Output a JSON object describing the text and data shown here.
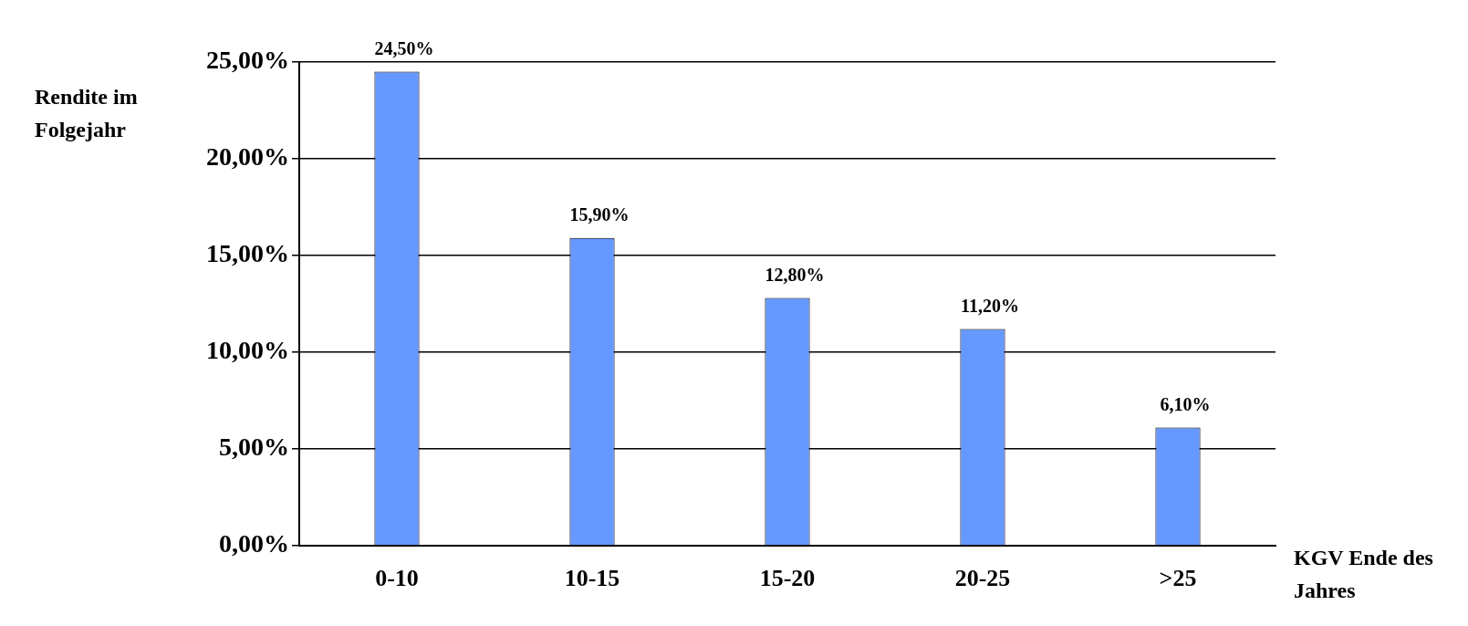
{
  "chart_data": {
    "type": "bar",
    "xlabel": "KGV Ende des Jahres",
    "ylabel": "Rendite im Folgejahr",
    "categories": [
      "0-10",
      "10-15",
      "15-20",
      "20-25",
      ">25"
    ],
    "values": [
      24.5,
      15.9,
      12.8,
      11.2,
      6.1
    ],
    "value_labels": [
      "24,50%",
      "15,90%",
      "12,80%",
      "11,20%",
      "6,10%"
    ],
    "color": "#6699ff",
    "ylim": [
      0,
      25
    ],
    "yticks": [
      {
        "value": 0,
        "label": "0,00%"
      },
      {
        "value": 5,
        "label": "5,00%"
      },
      {
        "value": 10,
        "label": "10,00%"
      },
      {
        "value": 15,
        "label": "15,00%"
      },
      {
        "value": 20,
        "label": "20,00%"
      },
      {
        "value": 25,
        "label": "25,00%"
      }
    ],
    "grid": "y",
    "legend": false
  }
}
